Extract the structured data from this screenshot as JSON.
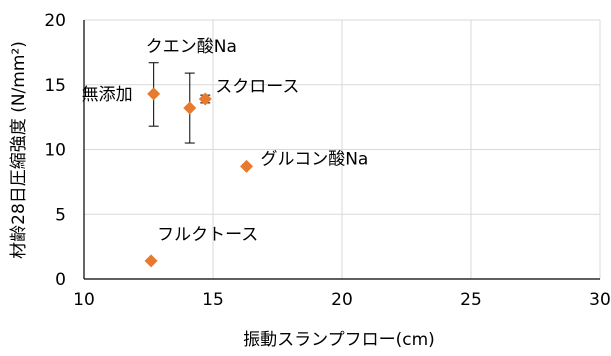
{
  "chart_data": {
    "type": "scatter",
    "xlabel": "振動スランプフロー(cm)",
    "ylabel": "材齢28日圧縮強度 (N/mm²)",
    "xlim": [
      10,
      30
    ],
    "ylim": [
      0,
      20
    ],
    "x_ticks": [
      10,
      15,
      20,
      25,
      30
    ],
    "y_ticks": [
      0,
      5,
      10,
      15,
      20
    ],
    "grid": true,
    "marker": "diamond",
    "marker_color": "#E87A2E",
    "points": [
      {
        "label": "無添加",
        "x": 12.7,
        "y": 14.3,
        "yerr": [
          11.8,
          16.7
        ]
      },
      {
        "label": "クエン酸Na",
        "x": 14.1,
        "y": 13.2,
        "yerr": [
          10.5,
          15.9
        ]
      },
      {
        "label": "スクロース",
        "x": 14.7,
        "y": 13.9,
        "yerr": [
          13.6,
          14.2
        ]
      },
      {
        "label": "グルコン酸Na",
        "x": 16.3,
        "y": 8.7
      },
      {
        "label": "フルクトース",
        "x": 12.6,
        "y": 1.4
      }
    ]
  }
}
